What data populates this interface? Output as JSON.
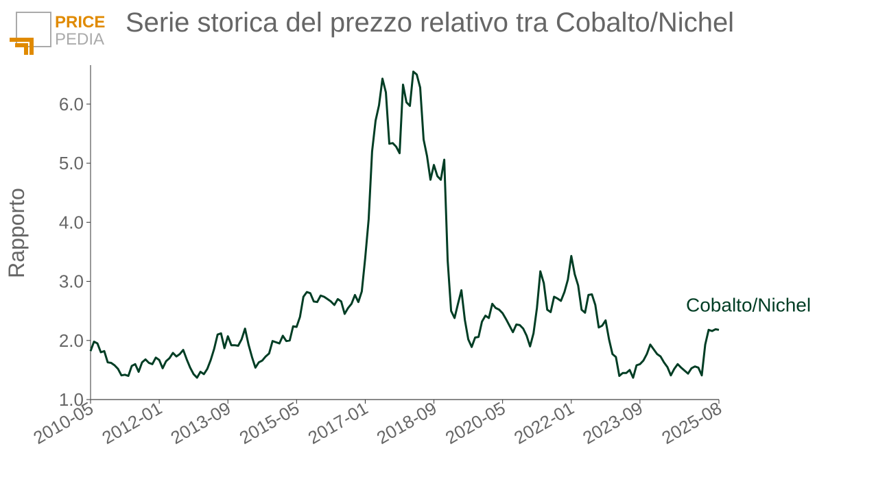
{
  "logo": {
    "top": "PRICE",
    "bottom": "PEDIA"
  },
  "chart_data": {
    "type": "line",
    "title": "Serie storica del prezzo relativo tra Cobalto/Nichel",
    "y_label": "Rapporto",
    "x": [
      "2010-05",
      "2010-06",
      "2010-07",
      "2010-08",
      "2010-09",
      "2010-10",
      "2010-11",
      "2010-12",
      "2011-01",
      "2011-02",
      "2011-03",
      "2011-04",
      "2011-05",
      "2011-06",
      "2011-07",
      "2011-08",
      "2011-09",
      "2011-10",
      "2011-11",
      "2011-12",
      "2012-01",
      "2012-02",
      "2012-03",
      "2012-04",
      "2012-05",
      "2012-06",
      "2012-07",
      "2012-08",
      "2012-09",
      "2012-10",
      "2012-11",
      "2012-12",
      "2013-01",
      "2013-02",
      "2013-03",
      "2013-04",
      "2013-05",
      "2013-06",
      "2013-07",
      "2013-08",
      "2013-09",
      "2013-10",
      "2013-11",
      "2013-12",
      "2014-01",
      "2014-02",
      "2014-03",
      "2014-04",
      "2014-05",
      "2014-06",
      "2014-07",
      "2014-08",
      "2014-09",
      "2014-10",
      "2014-11",
      "2014-12",
      "2015-01",
      "2015-02",
      "2015-03",
      "2015-04",
      "2015-05",
      "2015-06",
      "2015-07",
      "2015-08",
      "2015-09",
      "2015-10",
      "2015-11",
      "2015-12",
      "2016-01",
      "2016-02",
      "2016-03",
      "2016-04",
      "2016-05",
      "2016-06",
      "2016-07",
      "2016-08",
      "2016-09",
      "2016-10",
      "2016-11",
      "2016-12",
      "2017-01",
      "2017-02",
      "2017-03",
      "2017-04",
      "2017-05",
      "2017-06",
      "2017-07",
      "2017-08",
      "2017-09",
      "2017-10",
      "2017-11",
      "2017-12",
      "2018-01",
      "2018-02",
      "2018-03",
      "2018-04",
      "2018-05",
      "2018-06",
      "2018-07",
      "2018-08",
      "2018-09",
      "2018-10",
      "2018-11",
      "2018-12",
      "2019-01",
      "2019-02",
      "2019-03",
      "2019-04",
      "2019-05",
      "2019-06",
      "2019-07",
      "2019-08",
      "2019-09",
      "2019-10",
      "2019-11",
      "2019-12",
      "2020-01",
      "2020-02",
      "2020-03",
      "2020-04",
      "2020-05",
      "2020-06",
      "2020-07",
      "2020-08",
      "2020-09",
      "2020-10",
      "2020-11",
      "2020-12",
      "2021-01",
      "2021-02",
      "2021-03",
      "2021-04",
      "2021-05",
      "2021-06",
      "2021-07",
      "2021-08",
      "2021-09",
      "2021-10",
      "2021-11",
      "2021-12",
      "2022-01",
      "2022-02",
      "2022-03",
      "2022-04",
      "2022-05",
      "2022-06",
      "2022-07",
      "2022-08",
      "2022-09",
      "2022-10",
      "2022-11",
      "2022-12",
      "2023-01",
      "2023-02",
      "2023-03",
      "2023-04",
      "2023-05",
      "2023-06",
      "2023-07",
      "2023-08",
      "2023-09",
      "2023-10",
      "2023-11",
      "2023-12",
      "2024-01",
      "2024-02",
      "2024-03",
      "2024-04",
      "2024-05",
      "2024-06",
      "2024-07",
      "2024-08",
      "2024-09",
      "2024-10",
      "2024-11",
      "2024-12",
      "2025-01",
      "2025-02",
      "2025-03",
      "2025-04",
      "2025-05",
      "2025-06",
      "2025-07",
      "2025-08"
    ],
    "series": [
      {
        "name": "Cobalto/Nichel",
        "color": "#003d24",
        "values": [
          1.82,
          1.98,
          1.95,
          1.8,
          1.82,
          1.63,
          1.62,
          1.58,
          1.52,
          1.41,
          1.42,
          1.4,
          1.57,
          1.6,
          1.47,
          1.63,
          1.68,
          1.62,
          1.6,
          1.71,
          1.67,
          1.53,
          1.65,
          1.7,
          1.79,
          1.73,
          1.77,
          1.84,
          1.68,
          1.54,
          1.43,
          1.37,
          1.47,
          1.43,
          1.52,
          1.67,
          1.86,
          2.1,
          2.12,
          1.87,
          2.07,
          1.92,
          1.92,
          1.91,
          2.02,
          2.2,
          1.93,
          1.72,
          1.54,
          1.63,
          1.66,
          1.73,
          1.78,
          1.99,
          1.97,
          1.95,
          2.08,
          1.99,
          2.0,
          2.24,
          2.23,
          2.4,
          2.74,
          2.82,
          2.8,
          2.66,
          2.65,
          2.76,
          2.74,
          2.7,
          2.66,
          2.6,
          2.7,
          2.66,
          2.45,
          2.55,
          2.62,
          2.77,
          2.65,
          2.83,
          3.4,
          4.05,
          5.2,
          5.72,
          5.98,
          6.43,
          6.2,
          5.33,
          5.34,
          5.28,
          5.17,
          6.33,
          6.03,
          5.97,
          6.55,
          6.5,
          6.28,
          5.4,
          5.12,
          4.72,
          4.97,
          4.78,
          4.72,
          5.06,
          3.35,
          2.5,
          2.38,
          2.62,
          2.85,
          2.35,
          2.02,
          1.89,
          2.05,
          2.06,
          2.32,
          2.42,
          2.38,
          2.62,
          2.55,
          2.52,
          2.46,
          2.36,
          2.25,
          2.14,
          2.27,
          2.26,
          2.2,
          2.08,
          1.9,
          2.12,
          2.55,
          3.17,
          2.97,
          2.52,
          2.48,
          2.74,
          2.71,
          2.67,
          2.82,
          3.03,
          3.43,
          3.12,
          2.93,
          2.52,
          2.47,
          2.77,
          2.78,
          2.6,
          2.22,
          2.25,
          2.34,
          2.02,
          1.77,
          1.72,
          1.4,
          1.45,
          1.45,
          1.5,
          1.37,
          1.58,
          1.6,
          1.66,
          1.77,
          1.93,
          1.85,
          1.77,
          1.73,
          1.63,
          1.55,
          1.41,
          1.52,
          1.6,
          1.54,
          1.49,
          1.44,
          1.53,
          1.56,
          1.54,
          1.41,
          1.93,
          2.18,
          2.16,
          2.19,
          2.18
        ]
      }
    ],
    "xlim": [
      "2010-05",
      "2025-08"
    ],
    "xticks": [
      "2010-05",
      "2012-01",
      "2013-09",
      "2015-05",
      "2017-01",
      "2018-09",
      "2020-05",
      "2022-01",
      "2023-09",
      "2025-08"
    ],
    "ylim": [
      1.0,
      6.66
    ],
    "yticks": [
      {
        "value": 1,
        "label": "1.0"
      },
      {
        "value": 2,
        "label": "2.0"
      },
      {
        "value": 3,
        "label": "3.0"
      },
      {
        "value": 4,
        "label": "4.0"
      },
      {
        "value": 5,
        "label": "5.0"
      },
      {
        "value": 6,
        "label": "6.0"
      }
    ],
    "grid": false
  }
}
